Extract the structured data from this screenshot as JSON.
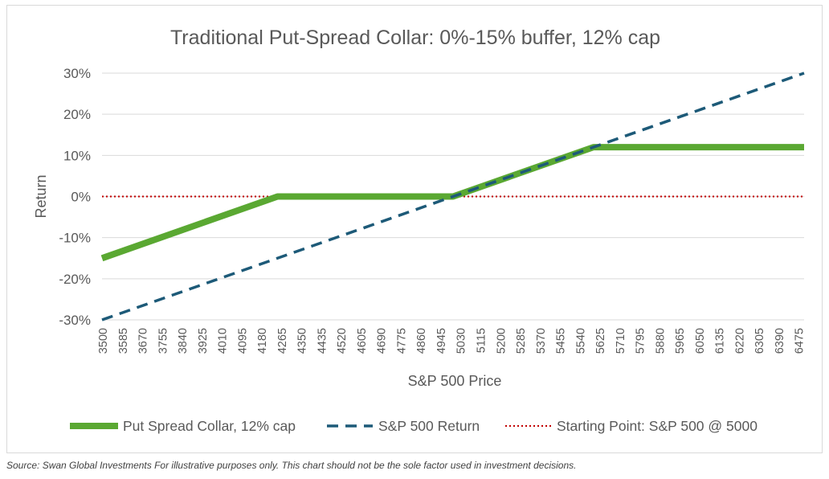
{
  "chart_data": {
    "type": "line",
    "title": "Traditional Put-Spread Collar: 0%-15% buffer, 12% cap",
    "xlabel": "S&P 500 Price",
    "ylabel": "Return",
    "categories": [
      "3500",
      "3585",
      "3670",
      "3755",
      "3840",
      "3925",
      "4010",
      "4095",
      "4180",
      "4265",
      "4350",
      "4435",
      "4520",
      "4605",
      "4690",
      "4775",
      "4860",
      "4945",
      "5030",
      "5115",
      "5200",
      "5285",
      "5370",
      "5455",
      "5540",
      "5625",
      "5710",
      "5795",
      "5880",
      "5965",
      "6050",
      "6135",
      "6220",
      "6305",
      "6390",
      "6475"
    ],
    "x_range": [
      3500,
      6500
    ],
    "yticks": [
      "30%",
      "20%",
      "10%",
      "0%",
      "-10%",
      "-20%",
      "-30%"
    ],
    "ylim": [
      -30,
      30
    ],
    "grid": "horizontal",
    "legend_position": "bottom",
    "series": [
      {
        "name": "Put Spread Collar, 12% cap",
        "style": "solid",
        "color": "#5aa832",
        "points": [
          [
            3500,
            -15
          ],
          [
            4250,
            0
          ],
          [
            5000,
            0
          ],
          [
            5600,
            12
          ],
          [
            6500,
            12
          ]
        ]
      },
      {
        "name": "S&P 500 Return",
        "style": "dashed",
        "color": "#1d5a78",
        "points": [
          [
            3500,
            -30
          ],
          [
            6500,
            30
          ]
        ]
      },
      {
        "name": "Starting Point: S&P 500 @ 5000",
        "style": "dotted",
        "color": "#c00000",
        "points": [
          [
            3500,
            0
          ],
          [
            6500,
            0
          ]
        ]
      }
    ]
  },
  "source_note": "Source: Swan Global Investments  For illustrative purposes only. This chart should not be the sole factor used in investment decisions."
}
